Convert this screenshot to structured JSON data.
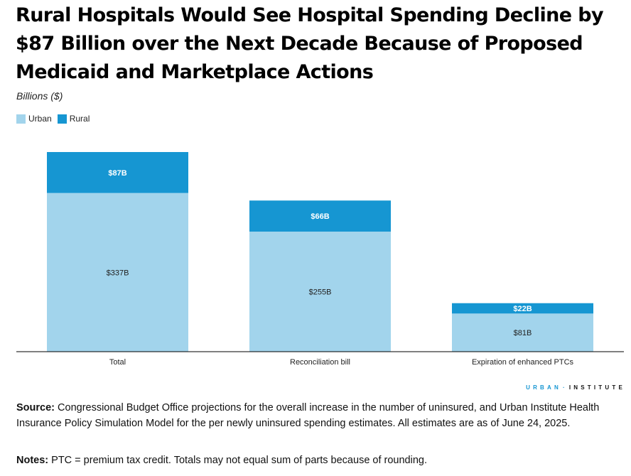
{
  "title": "Rural Hospitals Would See Hospital Spending Decline by $87 Billion over the Next Decade Because of Proposed Medicaid and Marketplace Actions",
  "chart_data": {
    "type": "bar",
    "stacked": true,
    "title": "Rural Hospitals Would See Hospital Spending Decline by $87 Billion over the Next Decade Because of Proposed Medicaid and Marketplace Actions",
    "ylabel": "Billions ($)",
    "xlabel": "",
    "categories": [
      "Total",
      "Reconciliation bill",
      "Expiration of enhanced PTCs"
    ],
    "series": [
      {
        "name": "Urban",
        "values": [
          337,
          255,
          81
        ],
        "labels": [
          "$337B",
          "$255B",
          "$81B"
        ],
        "color": "#a2d4ec"
      },
      {
        "name": "Rural",
        "values": [
          87,
          66,
          22
        ],
        "labels": [
          "$87B",
          "$66B",
          "$22B"
        ],
        "color": "#1696d2"
      }
    ],
    "ylim": [
      0,
      424
    ],
    "grid": false,
    "legend": "top-left"
  },
  "legend": {
    "urban_label": "Urban",
    "rural_label": "Rural"
  },
  "brand": {
    "part1": "URBAN",
    "separator": "·",
    "part2": "INSTITUTE"
  },
  "source": {
    "label": "Source:",
    "text": " Congressional Budget Office projections for the overall increase in the number of uninsured, and Urban Institute Health Insurance Policy Simulation Model for the per newly uninsured spending estimates. All estimates are as of June 24, 2025."
  },
  "notes": {
    "label": "Notes:",
    "text": " PTC = premium tax credit. Totals may not equal sum of parts because of rounding."
  },
  "colors": {
    "urban": "#a2d4ec",
    "rural": "#1696d2",
    "axis": "#000000"
  }
}
